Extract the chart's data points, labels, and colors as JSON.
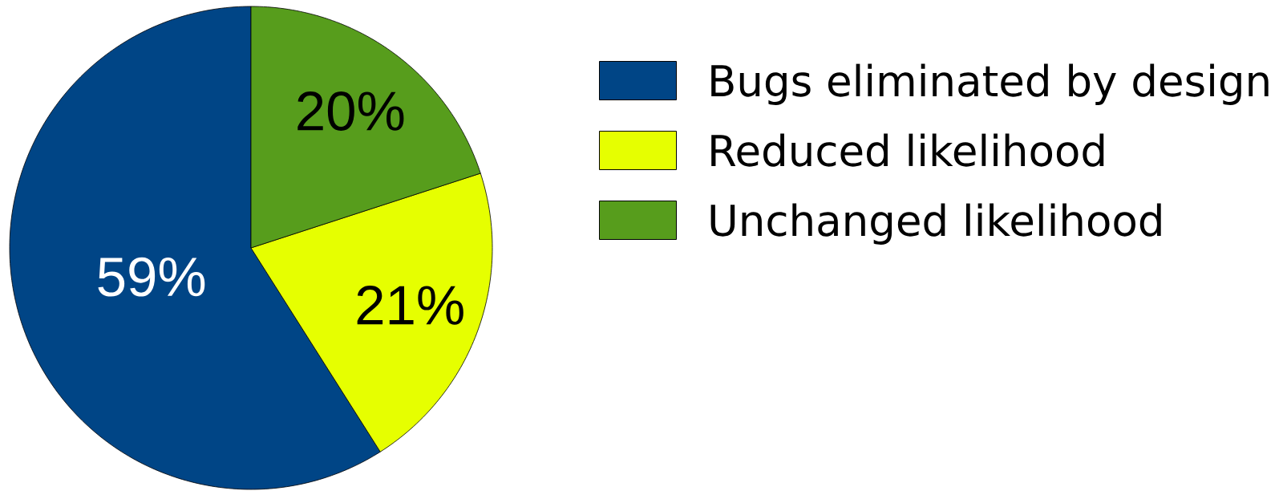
{
  "chart_data": {
    "type": "pie",
    "categories": [
      "Bugs eliminated by design",
      "Reduced likelihood",
      "Unchanged likelihood"
    ],
    "values": [
      59,
      21,
      20
    ],
    "colors": [
      "#004586",
      "#e6ff00",
      "#579d1c"
    ],
    "value_labels": [
      "59%",
      "21%",
      "20%"
    ],
    "legend": "right"
  }
}
